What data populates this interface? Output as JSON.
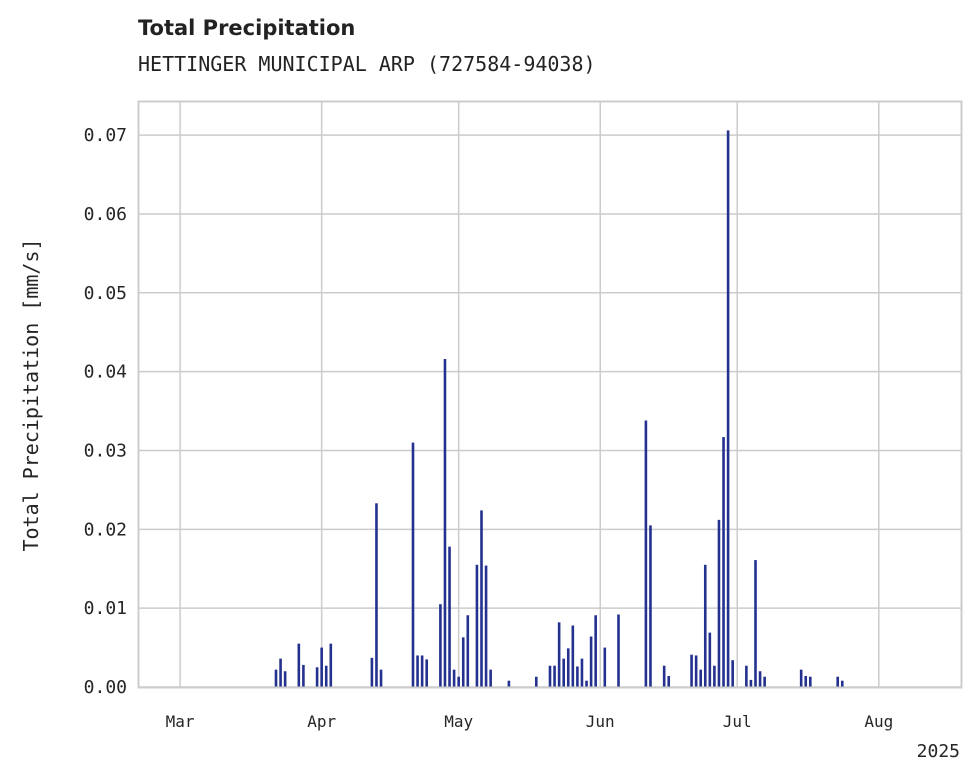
{
  "header": {
    "title": "Total Precipitation",
    "subtitle": "HETTINGER MUNICIPAL ARP (727584-94038)"
  },
  "chart_data": {
    "type": "bar",
    "title": "Total Precipitation",
    "subtitle": "HETTINGER MUNICIPAL ARP (727584-94038)",
    "ylabel": "Total Precipitation [mm/s]",
    "xlabel": "",
    "x_offset_label": "2025",
    "ylim": [
      0,
      0.0742
    ],
    "xlim": [
      "2025-02-20",
      "2025-08-19"
    ],
    "grid": true,
    "bar_color": "#24318f",
    "yticks": [
      0.0,
      0.01,
      0.02,
      0.03,
      0.04,
      0.05,
      0.06,
      0.07
    ],
    "ytick_labels": [
      "0.00",
      "0.01",
      "0.02",
      "0.03",
      "0.04",
      "0.05",
      "0.06",
      "0.07"
    ],
    "xticks": [
      "2025-03-01",
      "2025-04-01",
      "2025-05-01",
      "2025-06-01",
      "2025-07-01",
      "2025-08-01"
    ],
    "xtick_labels": [
      "Mar",
      "Apr",
      "May",
      "Jun",
      "Jul",
      "Aug"
    ],
    "x": [
      "2025-03-22",
      "2025-03-23",
      "2025-03-24",
      "2025-03-27",
      "2025-03-28",
      "2025-03-31",
      "2025-04-01",
      "2025-04-02",
      "2025-04-03",
      "2025-04-12",
      "2025-04-13",
      "2025-04-14",
      "2025-04-21",
      "2025-04-22",
      "2025-04-23",
      "2025-04-24",
      "2025-04-27",
      "2025-04-28",
      "2025-04-29",
      "2025-04-30",
      "2025-05-01",
      "2025-05-02",
      "2025-05-03",
      "2025-05-05",
      "2025-05-06",
      "2025-05-07",
      "2025-05-08",
      "2025-05-12",
      "2025-05-18",
      "2025-05-21",
      "2025-05-22",
      "2025-05-23",
      "2025-05-24",
      "2025-05-25",
      "2025-05-26",
      "2025-05-27",
      "2025-05-28",
      "2025-05-29",
      "2025-05-30",
      "2025-05-31",
      "2025-06-02",
      "2025-06-05",
      "2025-06-11",
      "2025-06-12",
      "2025-06-15",
      "2025-06-16",
      "2025-06-21",
      "2025-06-22",
      "2025-06-23",
      "2025-06-24",
      "2025-06-25",
      "2025-06-26",
      "2025-06-27",
      "2025-06-28",
      "2025-06-29",
      "2025-06-30",
      "2025-07-03",
      "2025-07-04",
      "2025-07-05",
      "2025-07-06",
      "2025-07-07",
      "2025-07-15",
      "2025-07-16",
      "2025-07-17",
      "2025-07-23",
      "2025-07-24",
      "2025-07-31",
      "2025-08-01",
      "2025-08-02",
      "2025-08-03",
      "2025-08-04",
      "2025-08-08",
      "2025-08-09",
      "2025-08-10",
      "2025-08-11",
      "2025-08-12",
      "2025-08-13",
      "2025-08-14",
      "2025-08-15",
      "2025-08-16",
      "2025-08-17",
      "2025-08-18",
      "2025-08-19",
      "2025-08-20"
    ],
    "values": [
      0.0022,
      0.0036,
      0.002,
      0.0055,
      0.0028,
      0.0025,
      0.005,
      0.0027,
      0.0055,
      0.0037,
      0.0233,
      0.0022,
      0.031,
      0.004,
      0.004,
      0.0035,
      0.0105,
      0.0416,
      0.0178,
      0.0022,
      0.0013,
      0.0063,
      0.0091,
      0.0155,
      0.0224,
      0.0154,
      0.0022,
      0.0008,
      0.0013,
      0.0027,
      0.0027,
      0.0082,
      0.0036,
      0.0049,
      0.0078,
      0.0026,
      0.0036,
      0.0008,
      0.0064,
      0.0091,
      0.005,
      0.0092,
      0.0338,
      0.0205,
      0.0027,
      0.0014,
      0.0041,
      0.004,
      0.0022,
      0.0155,
      0.0069,
      0.0027,
      0.0212,
      0.0317,
      0.0706,
      0.0034,
      0.0027,
      0.0009,
      0.0161,
      0.002,
      0.0013,
      0.0022,
      0.0014,
      0.0013,
      0.0013,
      0.0008,
      0.0,
      0.0,
      0.0,
      0.0,
      0.0,
      0.0,
      0.0,
      0.0,
      0.0,
      0.0,
      0.0,
      0.0,
      0.0,
      0.0,
      0.0,
      0.0,
      0.0,
      0.0
    ]
  }
}
